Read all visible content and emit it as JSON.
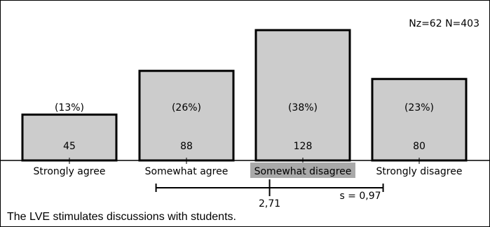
{
  "header": {
    "sample_info": "Nz=62  N=403"
  },
  "chart_data": {
    "type": "bar",
    "categories": [
      "Strongly agree",
      "Somewhat agree",
      "Somewhat disagree",
      "Strongly disagree"
    ],
    "values": [
      45,
      88,
      128,
      80
    ],
    "percent_labels": [
      "(13%)",
      "(26%)",
      "(38%)",
      "(23%)"
    ],
    "highlighted_category": "Somewhat disagree",
    "ylim": [
      0,
      135
    ],
    "grid": false,
    "stats": {
      "mean_label": "2,71",
      "mean": 2.71,
      "sd_label": "s = 0,97",
      "sd": 0.97,
      "scale_min": 1,
      "scale_max": 4
    },
    "colors": {
      "bar_fill": "#cccccc",
      "bar_stroke": "#000000",
      "highlight_bg": "#a9a9a9",
      "text": "#000000"
    }
  },
  "caption": "The LVE stimulates discussions with students."
}
